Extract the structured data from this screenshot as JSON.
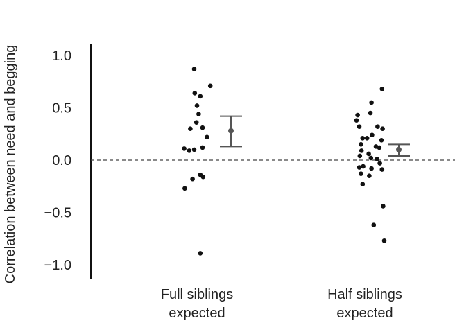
{
  "chart_data": {
    "type": "scatter",
    "title": "",
    "xlabel": "",
    "ylabel": "Correlation between need and begging",
    "ylim": [
      -1.1,
      1.1
    ],
    "yticks": [
      1.0,
      0.5,
      0.0,
      -0.5,
      -1.0
    ],
    "ytick_labels": [
      "1.0",
      "0.5",
      "0.0",
      "−0.5",
      "−1.0"
    ],
    "reference_line": {
      "y": 0.0,
      "style": "dashed"
    },
    "categories": [
      {
        "lines": [
          "Full siblings",
          "expected"
        ]
      },
      {
        "lines": [
          "Half siblings",
          "expected"
        ]
      }
    ],
    "series": [
      {
        "category_index": 0,
        "points": [
          {
            "jitter": -0.05,
            "y": 0.87
          },
          {
            "jitter": -0.04,
            "y": 0.64
          },
          {
            "jitter": 0.06,
            "y": 0.61
          },
          {
            "jitter": 0.24,
            "y": 0.71
          },
          {
            "jitter": 0.0,
            "y": 0.52
          },
          {
            "jitter": 0.03,
            "y": 0.44
          },
          {
            "jitter": -0.01,
            "y": 0.36
          },
          {
            "jitter": 0.1,
            "y": 0.31
          },
          {
            "jitter": -0.12,
            "y": 0.3
          },
          {
            "jitter": 0.18,
            "y": 0.22
          },
          {
            "jitter": 0.1,
            "y": 0.12
          },
          {
            "jitter": -0.23,
            "y": 0.11
          },
          {
            "jitter": -0.14,
            "y": 0.09
          },
          {
            "jitter": -0.05,
            "y": 0.1
          },
          {
            "jitter": 0.06,
            "y": -0.14
          },
          {
            "jitter": 0.11,
            "y": -0.16
          },
          {
            "jitter": -0.08,
            "y": -0.18
          },
          {
            "jitter": -0.22,
            "y": -0.27
          },
          {
            "jitter": 0.06,
            "y": -0.89
          }
        ],
        "mean": 0.28,
        "ci": [
          0.13,
          0.42
        ]
      },
      {
        "category_index": 1,
        "points": [
          {
            "jitter": 0.31,
            "y": 0.68
          },
          {
            "jitter": 0.12,
            "y": 0.55
          },
          {
            "jitter": 0.1,
            "y": 0.45
          },
          {
            "jitter": -0.13,
            "y": 0.43
          },
          {
            "jitter": -0.15,
            "y": 0.38
          },
          {
            "jitter": -0.1,
            "y": 0.32
          },
          {
            "jitter": 0.23,
            "y": 0.32
          },
          {
            "jitter": 0.32,
            "y": 0.3
          },
          {
            "jitter": 0.13,
            "y": 0.24
          },
          {
            "jitter": -0.04,
            "y": 0.21
          },
          {
            "jitter": 0.04,
            "y": 0.21
          },
          {
            "jitter": 0.3,
            "y": 0.19
          },
          {
            "jitter": -0.07,
            "y": 0.15
          },
          {
            "jitter": 0.2,
            "y": 0.13
          },
          {
            "jitter": 0.26,
            "y": 0.12
          },
          {
            "jitter": -0.06,
            "y": 0.09
          },
          {
            "jitter": 0.07,
            "y": 0.06
          },
          {
            "jitter": -0.09,
            "y": 0.04
          },
          {
            "jitter": 0.11,
            "y": 0.02
          },
          {
            "jitter": 0.22,
            "y": 0.01
          },
          {
            "jitter": 0.27,
            "y": -0.03
          },
          {
            "jitter": -0.03,
            "y": -0.06
          },
          {
            "jitter": -0.1,
            "y": -0.07
          },
          {
            "jitter": 0.12,
            "y": -0.08
          },
          {
            "jitter": 0.31,
            "y": -0.09
          },
          {
            "jitter": -0.07,
            "y": -0.13
          },
          {
            "jitter": 0.08,
            "y": -0.15
          },
          {
            "jitter": -0.04,
            "y": -0.23
          },
          {
            "jitter": 0.33,
            "y": -0.44
          },
          {
            "jitter": 0.16,
            "y": -0.62
          },
          {
            "jitter": 0.35,
            "y": -0.77
          }
        ],
        "mean": 0.1,
        "ci": [
          0.04,
          0.15
        ]
      }
    ],
    "colors": {
      "points": "#111111",
      "summary": "#555555",
      "axis": "#111111",
      "reference": "#444444"
    }
  }
}
